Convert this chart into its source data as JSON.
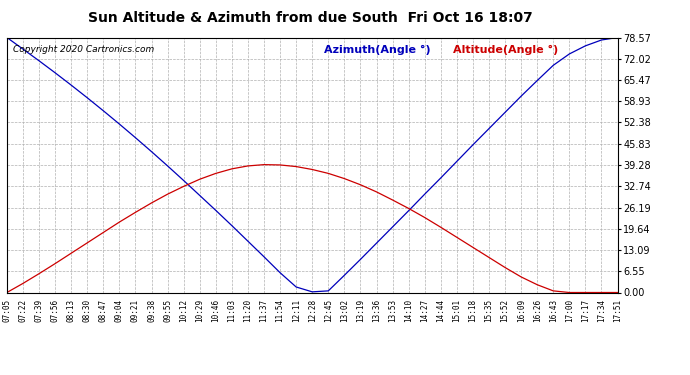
{
  "title": "Sun Altitude & Azimuth from due South  Fri Oct 16 18:07",
  "copyright": "Copyright 2020 Cartronics.com",
  "legend_azimuth": "Azimuth(Angle °)",
  "legend_altitude": "Altitude(Angle °)",
  "yticks": [
    0.0,
    6.55,
    13.09,
    19.64,
    26.19,
    32.74,
    39.28,
    45.83,
    52.38,
    58.93,
    65.47,
    72.02,
    78.57
  ],
  "ymax": 78.57,
  "ymin": 0.0,
  "azimuth_color": "#0000bb",
  "altitude_color": "#cc0000",
  "background_color": "#ffffff",
  "grid_color": "#b0b0b0",
  "time_labels": [
    "07:05",
    "07:22",
    "07:39",
    "07:56",
    "08:13",
    "08:30",
    "08:47",
    "09:04",
    "09:21",
    "09:38",
    "09:55",
    "10:12",
    "10:29",
    "10:46",
    "11:03",
    "11:20",
    "11:37",
    "11:54",
    "12:11",
    "12:28",
    "12:45",
    "13:02",
    "13:19",
    "13:36",
    "13:53",
    "14:10",
    "14:27",
    "14:44",
    "15:01",
    "15:18",
    "15:35",
    "15:52",
    "16:09",
    "16:26",
    "16:43",
    "17:00",
    "17:17",
    "17:34",
    "17:51"
  ],
  "azimuth_values": [
    78.57,
    75.0,
    71.4,
    67.7,
    63.9,
    60.0,
    56.0,
    51.9,
    47.7,
    43.4,
    39.0,
    34.5,
    29.9,
    25.3,
    20.6,
    15.8,
    11.0,
    6.1,
    1.7,
    0.2,
    0.5,
    5.3,
    10.2,
    15.2,
    20.2,
    25.2,
    30.3,
    35.3,
    40.4,
    45.5,
    50.5,
    55.5,
    60.5,
    65.3,
    70.0,
    73.5,
    76.0,
    77.8,
    78.57
  ],
  "altitude_values": [
    0.0,
    2.8,
    5.8,
    8.9,
    12.1,
    15.3,
    18.5,
    21.7,
    24.7,
    27.6,
    30.3,
    32.7,
    34.9,
    36.7,
    38.1,
    39.0,
    39.4,
    39.3,
    38.8,
    37.9,
    36.7,
    35.1,
    33.2,
    31.0,
    28.5,
    25.9,
    23.1,
    20.1,
    17.0,
    13.9,
    10.8,
    7.7,
    4.8,
    2.4,
    0.5,
    0.0,
    0.0,
    0.0,
    0.0
  ],
  "title_fontsize": 10,
  "copyright_fontsize": 6.5,
  "legend_fontsize": 8,
  "ytick_fontsize": 7,
  "xtick_fontsize": 5.5
}
